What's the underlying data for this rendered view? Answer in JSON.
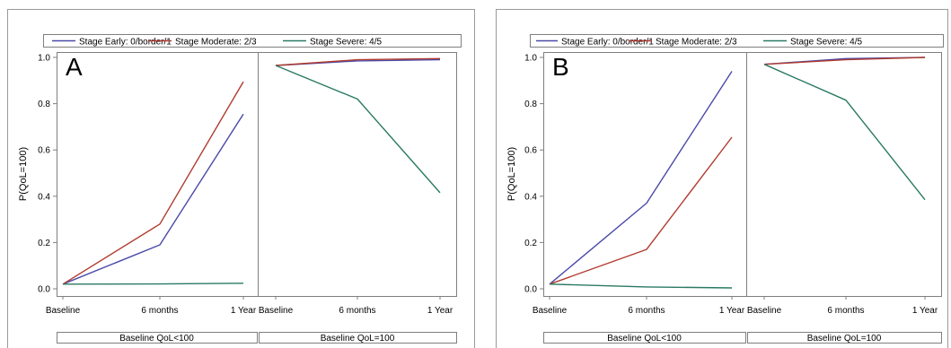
{
  "colors": {
    "early": "#4a4aa8",
    "moderate": "#b03a2e",
    "severe": "#2a7a64",
    "frame": "#9a9a9a",
    "axis": "#7f7f7f"
  },
  "chart_data": [
    {
      "type": "line",
      "panel_label": "A",
      "ylabel": "P(QoL=100)",
      "ylim": [
        0,
        1.0
      ],
      "y_ticks": [
        "0.0",
        "0.2",
        "0.4",
        "0.6",
        "0.8",
        "1.0"
      ],
      "x": [
        "Baseline",
        "6 months",
        "1 Year"
      ],
      "facets": [
        "Baseline QoL<100",
        "Baseline QoL=100"
      ],
      "legend": [
        "Stage Early: 0/border/1",
        "Stage Moderate: 2/3",
        "Stage Severe: 4/5"
      ],
      "series": [
        {
          "name": "Stage Early: 0/border/1",
          "color": "#4a4aa8",
          "values": [
            [
              0.02,
              0.19,
              0.755
            ],
            [
              0.965,
              0.985,
              0.99
            ]
          ]
        },
        {
          "name": "Stage Moderate: 2/3",
          "color": "#b03a2e",
          "values": [
            [
              0.02,
              0.28,
              0.895
            ],
            [
              0.965,
              0.99,
              0.995
            ]
          ]
        },
        {
          "name": "Stage Severe: 4/5",
          "color": "#2a7a64",
          "values": [
            [
              0.02,
              0.021,
              0.024
            ],
            [
              0.965,
              0.82,
              0.415
            ]
          ]
        }
      ]
    },
    {
      "type": "line",
      "panel_label": "B",
      "ylabel": "P(QoL=100)",
      "ylim": [
        0,
        1.0
      ],
      "y_ticks": [
        "0.0",
        "0.2",
        "0.4",
        "0.6",
        "0.8",
        "1.0"
      ],
      "x": [
        "Baseline",
        "6 months",
        "1 Year"
      ],
      "facets": [
        "Baseline QoL<100",
        "Baseline QoL=100"
      ],
      "legend": [
        "Stage Early: 0/border/1",
        "Stage Moderate: 2/3",
        "Stage Severe: 4/5"
      ],
      "series": [
        {
          "name": "Stage Early: 0/border/1",
          "color": "#4a4aa8",
          "values": [
            [
              0.02,
              0.37,
              0.94
            ],
            [
              0.97,
              0.995,
              1.0
            ]
          ]
        },
        {
          "name": "Stage Moderate: 2/3",
          "color": "#b03a2e",
          "values": [
            [
              0.02,
              0.17,
              0.655
            ],
            [
              0.97,
              0.99,
              1.0
            ]
          ]
        },
        {
          "name": "Stage Severe: 4/5",
          "color": "#2a7a64",
          "values": [
            [
              0.02,
              0.008,
              0.004
            ],
            [
              0.97,
              0.815,
              0.385
            ]
          ]
        }
      ]
    }
  ]
}
